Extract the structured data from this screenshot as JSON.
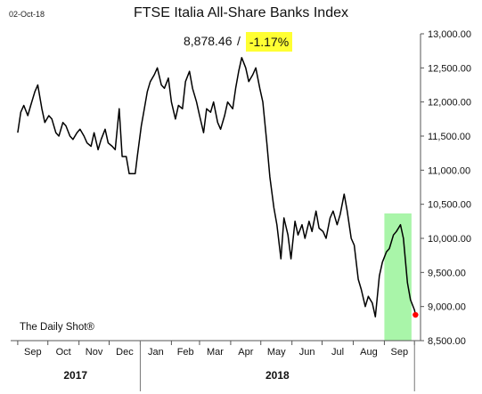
{
  "chart_data": {
    "type": "line",
    "title": "FTSE Italia All-Share Banks Index",
    "date_stamp": "02-Oct-18",
    "last_value": "8,878.46",
    "change": "-1.17%",
    "source": "The Daily Shot®",
    "x_months": [
      "Sep",
      "Oct",
      "Nov",
      "Dec",
      "Jan",
      "Feb",
      "Mar",
      "Apr",
      "May",
      "Jun",
      "Jul",
      "Aug",
      "Sep"
    ],
    "x_years": [
      "2017",
      "2018"
    ],
    "ylim": [
      8500,
      13000
    ],
    "y_ticks": [
      "8,500.00",
      "9,000.00",
      "9,500.00",
      "10,000.00",
      "10,500.00",
      "11,000.00",
      "11,500.00",
      "12,000.00",
      "12,500.00",
      "13,000.00"
    ],
    "y_tick_values": [
      8500,
      9000,
      9500,
      10000,
      10500,
      11000,
      11500,
      12000,
      12500,
      13000
    ],
    "highlight": {
      "from": "2018-09-01",
      "to": "2018-09-28",
      "color": "#a9f5a9"
    },
    "line_color": "#000000",
    "marker_color": "#ff0000",
    "series": [
      {
        "x": [
          "2017-09-01",
          "2017-09-04",
          "2017-09-07",
          "2017-09-11",
          "2017-09-14",
          "2017-09-18",
          "2017-09-21",
          "2017-09-25",
          "2017-09-28",
          "2017-10-02",
          "2017-10-05",
          "2017-10-09",
          "2017-10-12",
          "2017-10-16",
          "2017-10-19",
          "2017-10-23",
          "2017-10-26",
          "2017-10-30",
          "2017-11-02",
          "2017-11-06",
          "2017-11-09",
          "2017-11-13",
          "2017-11-16",
          "2017-11-20",
          "2017-11-23",
          "2017-11-27",
          "2017-11-30",
          "2017-12-04",
          "2017-12-07",
          "2017-12-11",
          "2017-12-14",
          "2017-12-18",
          "2017-12-21",
          "2017-12-27",
          "2017-12-29",
          "2018-01-02",
          "2018-01-05",
          "2018-01-08",
          "2018-01-11",
          "2018-01-15",
          "2018-01-18",
          "2018-01-22",
          "2018-01-25",
          "2018-01-29",
          "2018-02-01",
          "2018-02-05",
          "2018-02-08",
          "2018-02-12",
          "2018-02-15",
          "2018-02-19",
          "2018-02-22",
          "2018-02-26",
          "2018-03-01",
          "2018-03-05",
          "2018-03-08",
          "2018-03-12",
          "2018-03-15",
          "2018-03-19",
          "2018-03-22",
          "2018-03-26",
          "2018-03-29",
          "2018-04-03",
          "2018-04-06",
          "2018-04-09",
          "2018-04-12",
          "2018-04-16",
          "2018-04-19",
          "2018-04-23",
          "2018-04-26",
          "2018-04-30",
          "2018-05-03",
          "2018-05-07",
          "2018-05-10",
          "2018-05-14",
          "2018-05-17",
          "2018-05-21",
          "2018-05-24",
          "2018-05-28",
          "2018-05-31",
          "2018-06-04",
          "2018-06-07",
          "2018-06-11",
          "2018-06-14",
          "2018-06-18",
          "2018-06-21",
          "2018-06-25",
          "2018-06-28",
          "2018-07-02",
          "2018-07-05",
          "2018-07-09",
          "2018-07-12",
          "2018-07-16",
          "2018-07-19",
          "2018-07-23",
          "2018-07-26",
          "2018-07-30",
          "2018-08-02",
          "2018-08-06",
          "2018-08-09",
          "2018-08-13",
          "2018-08-16",
          "2018-08-20",
          "2018-08-23",
          "2018-08-27",
          "2018-08-30",
          "2018-09-03",
          "2018-09-06",
          "2018-09-10",
          "2018-09-13",
          "2018-09-17",
          "2018-09-20",
          "2018-09-24",
          "2018-09-27",
          "2018-10-01",
          "2018-10-02"
        ],
        "y": [
          11550,
          11850,
          11950,
          11800,
          11950,
          12150,
          12250,
          11900,
          11700,
          11800,
          11750,
          11550,
          11500,
          11700,
          11650,
          11500,
          11450,
          11550,
          11600,
          11500,
          11400,
          11350,
          11550,
          11300,
          11450,
          11600,
          11400,
          11350,
          11300,
          11900,
          11200,
          11200,
          10950,
          10950,
          11200,
          11650,
          11900,
          12150,
          12300,
          12400,
          12500,
          12250,
          12200,
          12350,
          12000,
          11750,
          11950,
          11900,
          12300,
          12450,
          12200,
          12000,
          11800,
          11550,
          11900,
          11850,
          12000,
          11700,
          11600,
          11800,
          12000,
          11900,
          12200,
          12450,
          12650,
          12500,
          12300,
          12400,
          12500,
          12200,
          12000,
          11400,
          10900,
          10450,
          10200,
          9700,
          10300,
          10050,
          9700,
          10250,
          10050,
          10200,
          10000,
          10250,
          10100,
          10400,
          10150,
          10100,
          10000,
          10300,
          10400,
          10200,
          10350,
          10650,
          10400,
          10000,
          9900,
          9400,
          9250,
          9000,
          9150,
          9050,
          8850,
          9450,
          9650,
          9800,
          9850,
          10050,
          10100,
          10200,
          10000,
          9350,
          9100,
          8950,
          8878
        ]
      }
    ]
  }
}
